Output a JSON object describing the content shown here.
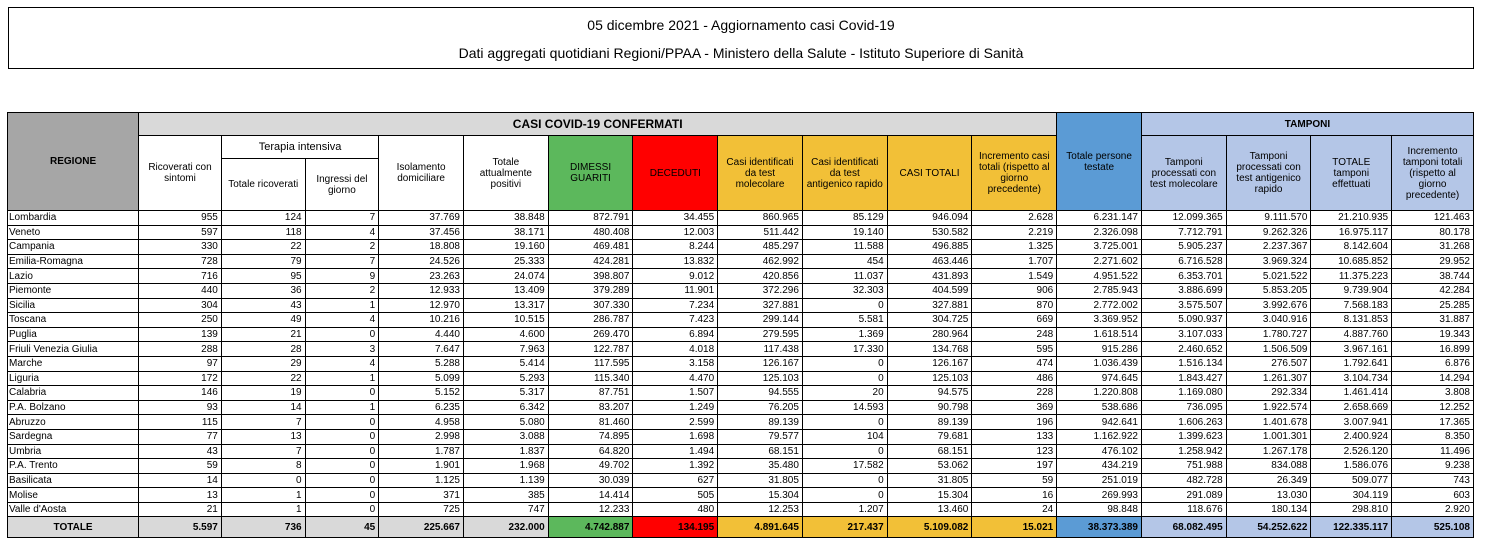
{
  "header": {
    "line1": "05 dicembre 2021 - Aggiornamento casi Covid-19",
    "line2": "Dati aggregati quotidiani Regioni/PPAA - Ministero della Salute - Istituto Superiore di Sanità"
  },
  "columns": {
    "regione": "REGIONE",
    "casi_group": "CASI COVID-19 CONFERMATI",
    "tamponi_group": "TAMPONI",
    "terapia_group": "Terapia intensiva",
    "ricoverati": "Ricoverati con sintomi",
    "ti_totale": "Totale ricoverati",
    "ti_ingressi": "Ingressi del giorno",
    "isolamento": "Isolamento domiciliare",
    "positivi": "Totale attualmente positivi",
    "dimessi": "DIMESSI GUARITI",
    "deceduti": "DECEDUTI",
    "casi_molecolare": "Casi identificati da test molecolare",
    "casi_antigenico": "Casi identificati da test antigenico rapido",
    "casi_totali": "CASI TOTALI",
    "incremento_casi": "Incremento casi totali (rispetto al giorno precedente)",
    "persone_testate": "Totale persone testate",
    "tamp_molecolare": "Tamponi processati con test molecolare",
    "tamp_antigenico": "Tamponi processati con test antigenico rapido",
    "tamp_totale": "TOTALE tamponi effettuati",
    "incremento_tamponi": "Incremento tamponi totali (rispetto al giorno precedente)"
  },
  "rows": [
    [
      "Lombardia",
      "955",
      "124",
      "7",
      "37.769",
      "38.848",
      "872.791",
      "34.455",
      "860.965",
      "85.129",
      "946.094",
      "2.628",
      "6.231.147",
      "12.099.365",
      "9.111.570",
      "21.210.935",
      "121.463"
    ],
    [
      "Veneto",
      "597",
      "118",
      "4",
      "37.456",
      "38.171",
      "480.408",
      "12.003",
      "511.442",
      "19.140",
      "530.582",
      "2.219",
      "2.326.098",
      "7.712.791",
      "9.262.326",
      "16.975.117",
      "80.178"
    ],
    [
      "Campania",
      "330",
      "22",
      "2",
      "18.808",
      "19.160",
      "469.481",
      "8.244",
      "485.297",
      "11.588",
      "496.885",
      "1.325",
      "3.725.001",
      "5.905.237",
      "2.237.367",
      "8.142.604",
      "31.268"
    ],
    [
      "Emilia-Romagna",
      "728",
      "79",
      "7",
      "24.526",
      "25.333",
      "424.281",
      "13.832",
      "462.992",
      "454",
      "463.446",
      "1.707",
      "2.271.602",
      "6.716.528",
      "3.969.324",
      "10.685.852",
      "29.952"
    ],
    [
      "Lazio",
      "716",
      "95",
      "9",
      "23.263",
      "24.074",
      "398.807",
      "9.012",
      "420.856",
      "11.037",
      "431.893",
      "1.549",
      "4.951.522",
      "6.353.701",
      "5.021.522",
      "11.375.223",
      "38.744"
    ],
    [
      "Piemonte",
      "440",
      "36",
      "2",
      "12.933",
      "13.409",
      "379.289",
      "11.901",
      "372.296",
      "32.303",
      "404.599",
      "906",
      "2.785.943",
      "3.886.699",
      "5.853.205",
      "9.739.904",
      "42.284"
    ],
    [
      "Sicilia",
      "304",
      "43",
      "1",
      "12.970",
      "13.317",
      "307.330",
      "7.234",
      "327.881",
      "0",
      "327.881",
      "870",
      "2.772.002",
      "3.575.507",
      "3.992.676",
      "7.568.183",
      "25.285"
    ],
    [
      "Toscana",
      "250",
      "49",
      "4",
      "10.216",
      "10.515",
      "286.787",
      "7.423",
      "299.144",
      "5.581",
      "304.725",
      "669",
      "3.369.952",
      "5.090.937",
      "3.040.916",
      "8.131.853",
      "31.887"
    ],
    [
      "Puglia",
      "139",
      "21",
      "0",
      "4.440",
      "4.600",
      "269.470",
      "6.894",
      "279.595",
      "1.369",
      "280.964",
      "248",
      "1.618.514",
      "3.107.033",
      "1.780.727",
      "4.887.760",
      "19.343"
    ],
    [
      "Friuli Venezia Giulia",
      "288",
      "28",
      "3",
      "7.647",
      "7.963",
      "122.787",
      "4.018",
      "117.438",
      "17.330",
      "134.768",
      "595",
      "915.286",
      "2.460.652",
      "1.506.509",
      "3.967.161",
      "16.899"
    ],
    [
      "Marche",
      "97",
      "29",
      "4",
      "5.288",
      "5.414",
      "117.595",
      "3.158",
      "126.167",
      "0",
      "126.167",
      "474",
      "1.036.439",
      "1.516.134",
      "276.507",
      "1.792.641",
      "6.876"
    ],
    [
      "Liguria",
      "172",
      "22",
      "1",
      "5.099",
      "5.293",
      "115.340",
      "4.470",
      "125.103",
      "0",
      "125.103",
      "486",
      "974.645",
      "1.843.427",
      "1.261.307",
      "3.104.734",
      "14.294"
    ],
    [
      "Calabria",
      "146",
      "19",
      "0",
      "5.152",
      "5.317",
      "87.751",
      "1.507",
      "94.555",
      "20",
      "94.575",
      "228",
      "1.220.808",
      "1.169.080",
      "292.334",
      "1.461.414",
      "3.808"
    ],
    [
      "P.A. Bolzano",
      "93",
      "14",
      "1",
      "6.235",
      "6.342",
      "83.207",
      "1.249",
      "76.205",
      "14.593",
      "90.798",
      "369",
      "538.686",
      "736.095",
      "1.922.574",
      "2.658.669",
      "12.252"
    ],
    [
      "Abruzzo",
      "115",
      "7",
      "0",
      "4.958",
      "5.080",
      "81.460",
      "2.599",
      "89.139",
      "0",
      "89.139",
      "196",
      "942.641",
      "1.606.263",
      "1.401.678",
      "3.007.941",
      "17.365"
    ],
    [
      "Sardegna",
      "77",
      "13",
      "0",
      "2.998",
      "3.088",
      "74.895",
      "1.698",
      "79.577",
      "104",
      "79.681",
      "133",
      "1.162.922",
      "1.399.623",
      "1.001.301",
      "2.400.924",
      "8.350"
    ],
    [
      "Umbria",
      "43",
      "7",
      "0",
      "1.787",
      "1.837",
      "64.820",
      "1.494",
      "68.151",
      "0",
      "68.151",
      "123",
      "476.102",
      "1.258.942",
      "1.267.178",
      "2.526.120",
      "11.496"
    ],
    [
      "P.A. Trento",
      "59",
      "8",
      "0",
      "1.901",
      "1.968",
      "49.702",
      "1.392",
      "35.480",
      "17.582",
      "53.062",
      "197",
      "434.219",
      "751.988",
      "834.088",
      "1.586.076",
      "9.238"
    ],
    [
      "Basilicata",
      "14",
      "0",
      "0",
      "1.125",
      "1.139",
      "30.039",
      "627",
      "31.805",
      "0",
      "31.805",
      "59",
      "251.019",
      "482.728",
      "26.349",
      "509.077",
      "743"
    ],
    [
      "Molise",
      "13",
      "1",
      "0",
      "371",
      "385",
      "14.414",
      "505",
      "15.304",
      "0",
      "15.304",
      "16",
      "269.993",
      "291.089",
      "13.030",
      "304.119",
      "603"
    ],
    [
      "Valle d'Aosta",
      "21",
      "1",
      "0",
      "725",
      "747",
      "12.233",
      "480",
      "12.253",
      "1.207",
      "13.460",
      "24",
      "98.848",
      "118.676",
      "180.134",
      "298.810",
      "2.920"
    ]
  ],
  "total": [
    "TOTALE",
    "5.597",
    "736",
    "45",
    "225.667",
    "232.000",
    "4.742.887",
    "134.195",
    "4.891.645",
    "217.437",
    "5.109.082",
    "15.021",
    "38.373.389",
    "68.082.495",
    "54.252.622",
    "122.335.117",
    "525.108"
  ]
}
